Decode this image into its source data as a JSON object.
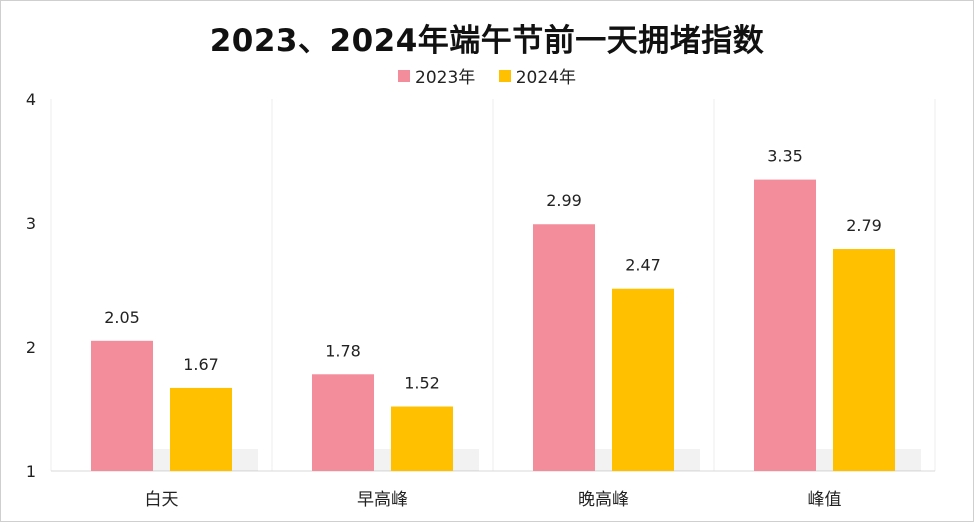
{
  "chart_data": {
    "type": "bar",
    "title": "2023、2024年端午节前一天拥堵指数",
    "categories": [
      "白天",
      "早高峰",
      "晚高峰",
      "峰值"
    ],
    "series": [
      {
        "name": "2023年",
        "color": "#F48D9B",
        "values": [
          2.05,
          1.78,
          2.99,
          3.35
        ],
        "labels": [
          "2.05",
          "1.78",
          "2.99",
          "3.35"
        ]
      },
      {
        "name": "2024年",
        "color": "#FFC000",
        "values": [
          1.67,
          1.52,
          2.47,
          2.79
        ],
        "labels": [
          "1.67",
          "1.52",
          "2.47",
          "2.79"
        ]
      }
    ],
    "ylim": [
      1,
      4
    ],
    "yticks": [
      "1",
      "2",
      "3",
      "4"
    ],
    "legend_position": "top-center",
    "grid": "vertical-category-separators"
  }
}
